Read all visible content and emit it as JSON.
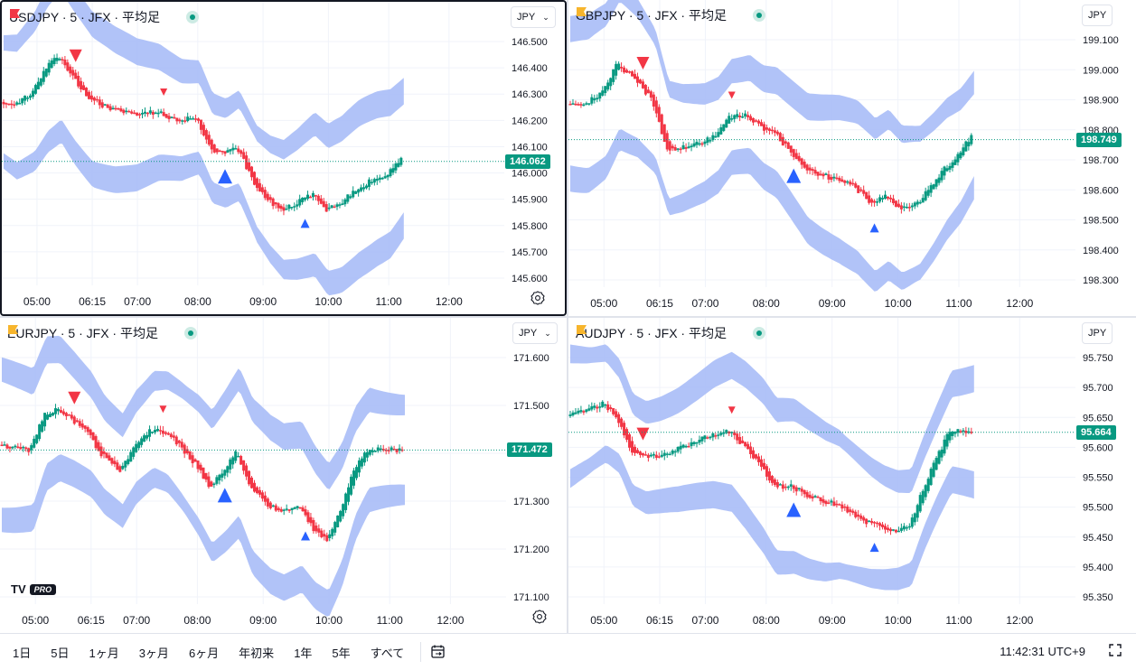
{
  "panes": [
    {
      "title": "USDJPY · 5 · JFX · 平均足",
      "flag_color": "#f23645",
      "unit_label": "JPY",
      "active": true,
      "y_ticks": [
        "146.500",
        "146.400",
        "146.300",
        "146.200",
        "146.100",
        "146.000",
        "145.900",
        "145.800",
        "145.700",
        "145.600"
      ],
      "x_ticks": [
        "05:00",
        "06:15",
        "07:00",
        "08:00",
        "09:00",
        "10:00",
        "11:00",
        "12:00"
      ],
      "price_label": "146.062",
      "has_gear": true,
      "has_logo": false
    },
    {
      "title": "GBPJPY · 5 · JFX · 平均足",
      "flag_color": "#f7b52c",
      "unit_label": "JPY",
      "active": false,
      "y_ticks": [
        "199.100",
        "199.000",
        "198.900",
        "198.800",
        "198.700",
        "198.600",
        "198.500",
        "198.400",
        "198.300"
      ],
      "x_ticks": [
        "05:00",
        "06:15",
        "07:00",
        "08:00",
        "09:00",
        "10:00",
        "11:00",
        "12:00"
      ],
      "price_label": "198.749",
      "has_gear": false,
      "has_logo": false
    },
    {
      "title": "EURJPY · 5 · JFX · 平均足",
      "flag_color": "#f7b52c",
      "unit_label": "JPY",
      "active": false,
      "y_ticks": [
        "171.600",
        "171.500",
        "171.400",
        "171.300",
        "171.200",
        "171.100"
      ],
      "x_ticks": [
        "05:00",
        "06:15",
        "07:00",
        "08:00",
        "09:00",
        "10:00",
        "11:00",
        "12:00"
      ],
      "price_label": "171.472",
      "has_gear": true,
      "has_logo": true
    },
    {
      "title": "AUDJPY · 5 · JFX · 平均足",
      "flag_color": "#f7b52c",
      "unit_label": "JPY",
      "active": false,
      "y_ticks": [
        "95.750",
        "95.700",
        "95.650",
        "95.600",
        "95.550",
        "95.500",
        "95.450",
        "95.400",
        "95.350"
      ],
      "x_ticks": [
        "05:00",
        "06:15",
        "07:00",
        "08:00",
        "09:00",
        "10:00",
        "11:00",
        "12:00"
      ],
      "price_label": "95.664",
      "has_gear": false,
      "has_logo": false
    }
  ],
  "colors": {
    "up": "#089981",
    "down": "#f23645",
    "band": "#a8bdf7",
    "marker_up": "#2962ff",
    "marker_down": "#f23645",
    "price_line": "#089981"
  },
  "logo": {
    "mark": "TV",
    "badge": "PRO"
  },
  "bottom": {
    "ranges": [
      "1日",
      "5日",
      "1ヶ月",
      "3ヶ月",
      "6ヶ月",
      "年初来",
      "1年",
      "5年",
      "すべて"
    ],
    "clock": "11:42:31 UTC+9",
    "icons": {
      "date_range": "calendar-range-icon",
      "expand": "expand-icon"
    }
  }
}
